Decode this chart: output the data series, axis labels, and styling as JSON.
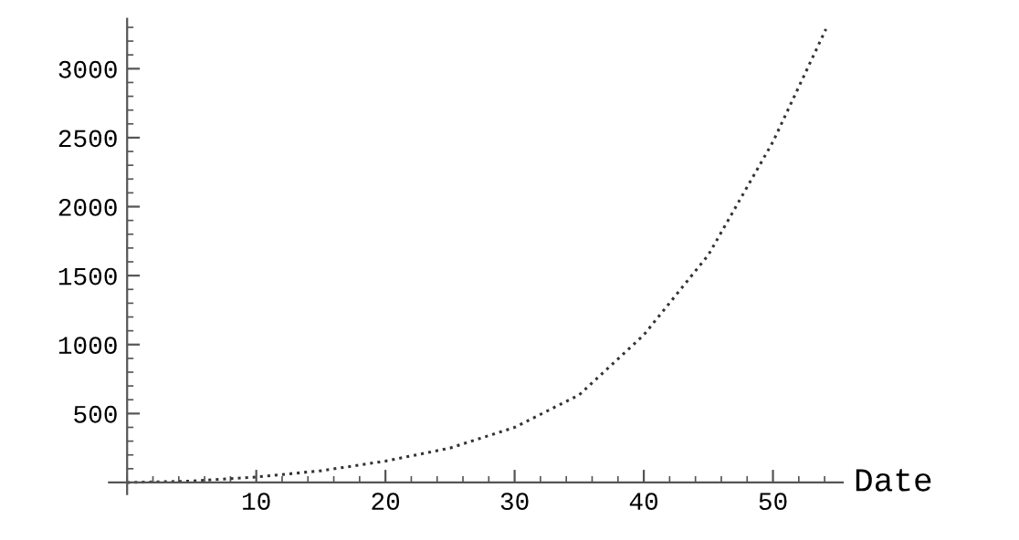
{
  "chart_data": {
    "type": "line",
    "xlabel": "Date",
    "x": [
      0,
      5,
      10,
      15,
      20,
      25,
      30,
      35,
      40,
      45,
      50,
      54.1
    ],
    "series": [
      {
        "color": "#333333",
        "values": [
          0,
          10,
          40,
          85,
          155,
          250,
          400,
          635,
          1070,
          1650,
          2470,
          3287
        ]
      }
    ],
    "line_style": "dotted",
    "marker": "none",
    "grid": false,
    "legend": false,
    "xlim": [
      -1.4,
      55.4
    ],
    "ylim": [
      -84,
      3361
    ],
    "xticks": [
      10,
      20,
      30,
      40,
      50
    ],
    "yticks": [
      500,
      1000,
      1500,
      2000,
      2500,
      3000
    ]
  }
}
